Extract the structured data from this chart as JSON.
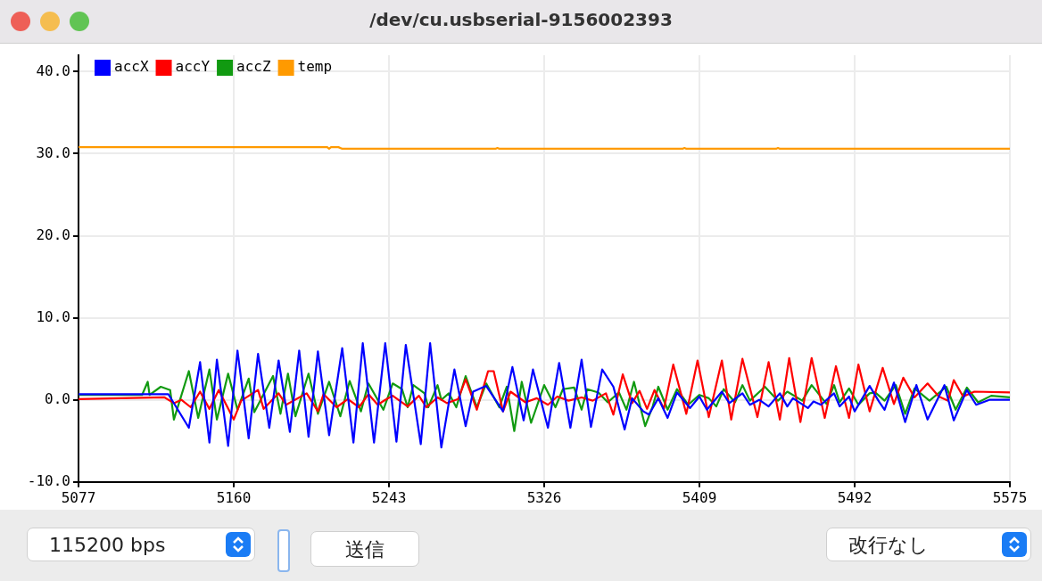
{
  "chart_data": {
    "type": "line",
    "title": "/dev/cu.usbserial-9156002393",
    "annotations": [
      "115200 bps",
      "送信",
      "改行なし"
    ],
    "xlim": [
      5077,
      5575
    ],
    "xticks": [
      5077,
      5160,
      5243,
      5326,
      5409,
      5492,
      5575
    ],
    "ylim": [
      -10,
      42
    ],
    "yticks": [
      {
        "value": -10,
        "label": "-10.0"
      },
      {
        "value": 0,
        "label": "0.0"
      },
      {
        "value": 10,
        "label": "10.0"
      },
      {
        "value": 20,
        "label": "20.0"
      },
      {
        "value": 30,
        "label": "30.0"
      },
      {
        "value": 40,
        "label": "40.0"
      }
    ],
    "grid": true,
    "legend": "top left",
    "marker": "none",
    "line_style": "solid",
    "series": [
      {
        "name": "accX",
        "color": "#0000ff",
        "x": [
          5077,
          5125,
          5136,
          5142,
          5147,
          5151,
          5157,
          5162,
          5168,
          5173,
          5179,
          5184,
          5190,
          5195,
          5200,
          5205,
          5211,
          5218,
          5224,
          5229,
          5235,
          5241,
          5247,
          5252,
          5260,
          5265,
          5271,
          5278,
          5284,
          5288,
          5295,
          5304,
          5309,
          5315,
          5320,
          5328,
          5334,
          5340,
          5346,
          5351,
          5357,
          5363,
          5369,
          5373,
          5379,
          5382,
          5387,
          5392,
          5397,
          5404,
          5409,
          5413,
          5421,
          5425,
          5432,
          5436,
          5441,
          5446,
          5452,
          5456,
          5459,
          5467,
          5470,
          5474,
          5481,
          5484,
          5489,
          5492,
          5500,
          5505,
          5508,
          5513,
          5519,
          5525,
          5531,
          5540,
          5545,
          5552,
          5557,
          5564,
          5575
        ],
        "values": [
          0.7,
          0.7,
          -3.4,
          4.6,
          -5.2,
          4.9,
          -5.6,
          6.0,
          -4.7,
          5.6,
          -3.4,
          4.8,
          -3.9,
          6.0,
          -4.5,
          5.9,
          -4.3,
          6.3,
          -5.2,
          6.9,
          -5.2,
          6.9,
          -5.1,
          6.7,
          -5.4,
          6.9,
          -5.8,
          3.7,
          -3.2,
          1.0,
          1.7,
          -1.4,
          4.0,
          -2.5,
          3.7,
          -3.4,
          4.5,
          -3.4,
          4.9,
          -3.3,
          3.7,
          1.6,
          -3.6,
          0.2,
          -1.4,
          -1.8,
          0.2,
          -2.2,
          0.9,
          -1.0,
          0.4,
          -1.2,
          1.0,
          -0.4,
          0.8,
          -0.6,
          0,
          -0.8,
          0.8,
          -0.8,
          0.2,
          -1.0,
          -0.2,
          -0.6,
          0.8,
          -0.8,
          0.4,
          -1.4,
          1.7,
          -0.2,
          -1.2,
          2.1,
          -2.7,
          1.8,
          -2.4,
          1.8,
          -2.5,
          1.2,
          -0.6,
          0,
          0
        ]
      },
      {
        "name": "accY",
        "color": "#ff0000",
        "x": [
          5077,
          5123,
          5128,
          5132,
          5137,
          5142,
          5147,
          5152,
          5160,
          5164,
          5173,
          5176,
          5184,
          5188,
          5199,
          5205,
          5208,
          5215,
          5221,
          5227,
          5232,
          5237,
          5241,
          5245,
          5253,
          5259,
          5263,
          5269,
          5274,
          5280,
          5284,
          5290,
          5296,
          5299,
          5304,
          5308,
          5316,
          5322,
          5328,
          5333,
          5339,
          5346,
          5352,
          5359,
          5363,
          5368,
          5373,
          5377,
          5381,
          5385,
          5390,
          5395,
          5402,
          5408,
          5414,
          5421,
          5426,
          5432,
          5440,
          5446,
          5452,
          5457,
          5463,
          5469,
          5476,
          5482,
          5489,
          5494,
          5500,
          5507,
          5513,
          5518,
          5524,
          5531,
          5537,
          5542,
          5545,
          5550,
          5556,
          5575
        ],
        "values": [
          0.1,
          0.3,
          -0.4,
          0,
          -0.9,
          1.0,
          -1.1,
          1.2,
          -2.4,
          -0.1,
          1.2,
          -1.1,
          0.8,
          -0.6,
          0.8,
          -1.4,
          0.7,
          -0.9,
          0.1,
          -0.9,
          0.7,
          -0.6,
          0,
          0.5,
          -0.8,
          0.5,
          -0.9,
          0.3,
          -0.4,
          0.1,
          2.5,
          -1.2,
          3.5,
          3.5,
          -1.4,
          1.0,
          -0.3,
          0.2,
          -0.6,
          0.4,
          -0.1,
          0.3,
          -0.1,
          0.8,
          -1.8,
          3.1,
          -0.4,
          1.1,
          -1.1,
          1.2,
          -1.1,
          4.3,
          -1.7,
          4.8,
          -2.1,
          4.8,
          -2.4,
          5.0,
          -2.1,
          4.6,
          -2.4,
          5.1,
          -2.7,
          5.1,
          -2.2,
          4.1,
          -2.2,
          4.3,
          -1.4,
          3.9,
          -0.5,
          2.7,
          0.3,
          2.0,
          0.4,
          -0.1,
          2.4,
          0.4,
          1.0,
          0.9
        ]
      },
      {
        "name": "accZ",
        "color": "#119a11",
        "x": [
          5077,
          5111,
          5114,
          5115,
          5121,
          5126,
          5128,
          5136,
          5141,
          5147,
          5151,
          5157,
          5162,
          5168,
          5171,
          5181,
          5185,
          5189,
          5193,
          5200,
          5205,
          5211,
          5217,
          5222,
          5228,
          5232,
          5240,
          5245,
          5250,
          5253,
          5256,
          5262,
          5264,
          5269,
          5271,
          5275,
          5279,
          5284,
          5290,
          5295,
          5302,
          5306,
          5310,
          5314,
          5319,
          5326,
          5332,
          5336,
          5342,
          5346,
          5349,
          5355,
          5360,
          5366,
          5370,
          5374,
          5380,
          5384,
          5387,
          5392,
          5397,
          5403,
          5409,
          5414,
          5418,
          5422,
          5428,
          5432,
          5436,
          5444,
          5451,
          5456,
          5464,
          5469,
          5477,
          5481,
          5484,
          5489,
          5494,
          5500,
          5503,
          5508,
          5514,
          5519,
          5524,
          5532,
          5541,
          5546,
          5552,
          5558,
          5565,
          5575
        ],
        "values": [
          0.6,
          0.6,
          2.2,
          0.6,
          1.6,
          1.2,
          -2.4,
          3.5,
          -2.2,
          3.7,
          -2.4,
          3.2,
          -1.2,
          2.6,
          -1.5,
          2.9,
          -1.7,
          3.2,
          -2.0,
          3.2,
          -1.7,
          2.2,
          -2.0,
          2.3,
          -1.4,
          2.0,
          -1.2,
          2.0,
          1.3,
          -0.9,
          1.8,
          0.8,
          -0.9,
          1.8,
          0,
          0.8,
          -0.9,
          2.9,
          -0.9,
          2.0,
          -0.9,
          1.6,
          -3.8,
          2.2,
          -2.8,
          1.8,
          -0.9,
          1.3,
          1.5,
          -1.2,
          1.3,
          0.9,
          -0.3,
          0.9,
          -1.2,
          2.2,
          -3.2,
          -0.8,
          1.6,
          -1.2,
          1.3,
          -0.6,
          0.6,
          0.2,
          -0.8,
          1.3,
          -0.3,
          1.8,
          -0.1,
          1.6,
          -0.1,
          1.0,
          -0.1,
          1.8,
          -0.5,
          1.8,
          -0.3,
          1.4,
          -0.6,
          0.8,
          0.9,
          -0.1,
          1.8,
          -1.7,
          1.4,
          -0.1,
          1.6,
          -1.2,
          1.5,
          -0.3,
          0.5,
          0.3
        ]
      },
      {
        "name": "temp",
        "color": "#ff9a00",
        "x": [
          5077,
          5210,
          5211,
          5212,
          5213,
          5216,
          5218,
          5222,
          5224,
          5300,
          5301,
          5302,
          5400,
          5401,
          5402,
          5450,
          5451,
          5452,
          5575
        ],
        "values": [
          30.8,
          30.8,
          30.6,
          30.8,
          30.8,
          30.8,
          30.6,
          30.6,
          30.6,
          30.6,
          30.7,
          30.6,
          30.6,
          30.7,
          30.6,
          30.6,
          30.7,
          30.6,
          30.6
        ]
      }
    ]
  }
}
